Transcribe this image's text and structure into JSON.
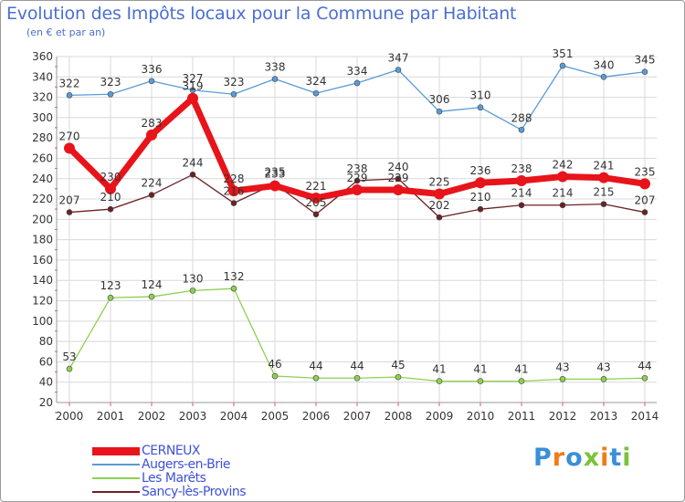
{
  "title": "Evolution des Impôts locaux pour la Commune par Habitant",
  "subtitle": "(en € et par an)",
  "brand": {
    "logo_text": "Proxiti",
    "colors": [
      "#3a8fd8",
      "#f07c16",
      "#7bc23a"
    ]
  },
  "chart_data": {
    "type": "line",
    "title": "Evolution des Impôts locaux pour la Commune par Habitant",
    "ylabel": "(en € et par an)",
    "xlabel": "",
    "categories": [
      "2000",
      "2001",
      "2002",
      "2003",
      "2004",
      "2005",
      "2006",
      "2007",
      "2008",
      "2009",
      "2010",
      "2011",
      "2012",
      "2013",
      "2014"
    ],
    "ylim": [
      20,
      360
    ],
    "yticks": [
      20,
      40,
      60,
      80,
      100,
      120,
      140,
      160,
      180,
      200,
      220,
      240,
      260,
      280,
      300,
      320,
      340,
      360
    ],
    "grid": true,
    "legend_position": "bottom-left",
    "series": [
      {
        "name": "CERNEUX",
        "color": "#e8141b",
        "emphasis": true,
        "values": [
          270,
          230,
          283,
          319,
          228,
          233,
          221,
          229,
          229,
          225,
          236,
          238,
          242,
          241,
          235
        ]
      },
      {
        "name": "Augers-en-Brie",
        "color": "#5b9bd5",
        "emphasis": false,
        "values": [
          322,
          323,
          336,
          327,
          323,
          338,
          324,
          334,
          347,
          306,
          310,
          288,
          351,
          340,
          345
        ]
      },
      {
        "name": "Les Marêts",
        "color": "#8ed04f",
        "emphasis": false,
        "values": [
          53,
          123,
          124,
          130,
          132,
          46,
          44,
          44,
          45,
          41,
          41,
          41,
          43,
          43,
          44
        ]
      },
      {
        "name": "Sancy-lès-Provins",
        "color": "#6b2226",
        "emphasis": false,
        "values": [
          207,
          210,
          224,
          244,
          216,
          235,
          205,
          238,
          240,
          202,
          210,
          214,
          214,
          215,
          207
        ]
      }
    ]
  }
}
